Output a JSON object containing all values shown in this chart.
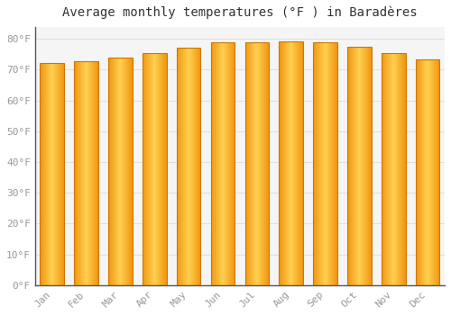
{
  "months": [
    "Jan",
    "Feb",
    "Mar",
    "Apr",
    "May",
    "Jun",
    "Jul",
    "Aug",
    "Sep",
    "Oct",
    "Nov",
    "Dec"
  ],
  "temperatures": [
    72.3,
    72.7,
    74.0,
    75.3,
    77.0,
    79.0,
    79.0,
    79.2,
    78.8,
    77.3,
    75.5,
    73.3
  ],
  "bar_edge_color": "#E8890A",
  "bar_center_color": "#FFD050",
  "bar_outer_color": "#F5A020",
  "background_color": "#FFFFFF",
  "plot_bg_color": "#F5F5F5",
  "grid_color": "#E0E0E0",
  "title": "Average monthly temperatures (°F ) in Baradères",
  "title_fontsize": 10,
  "yticks": [
    0,
    10,
    20,
    30,
    40,
    50,
    60,
    70,
    80
  ],
  "ylim": [
    0,
    84
  ],
  "tick_color": "#999999",
  "tick_fontsize": 8,
  "xlabel_fontsize": 8,
  "bar_width": 0.7
}
